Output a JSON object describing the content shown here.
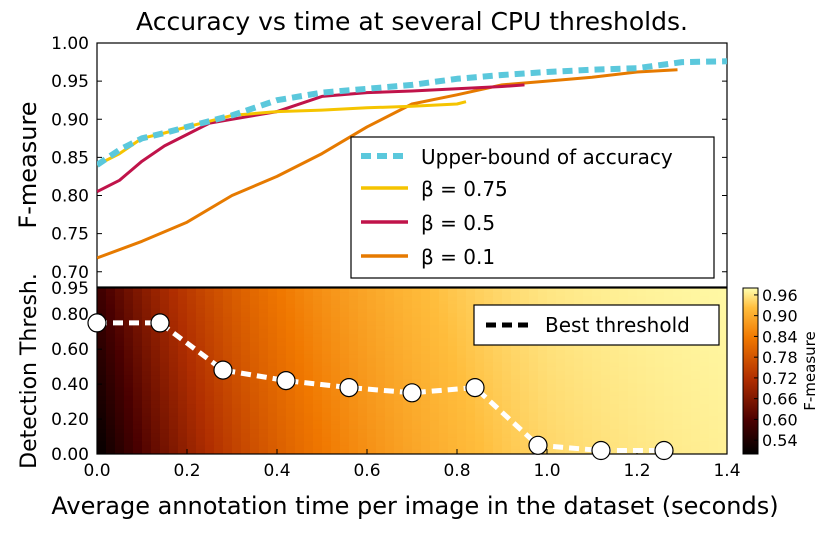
{
  "chart_data": [
    {
      "type": "line",
      "title": "Accuracy vs time at several CPU thresholds.",
      "ylabel": "F-measure",
      "xlim": [
        0.0,
        1.4
      ],
      "ylim": [
        0.68,
        1.0
      ],
      "yticks": [
        "0.70",
        "0.75",
        "0.80",
        "0.85",
        "0.90",
        "0.95",
        "1.00"
      ],
      "legend_position": "lower-right",
      "series": [
        {
          "name": "Upper-bound of accuracy",
          "color": "#5bc8dc",
          "style": "dashed",
          "x": [
            0,
            0.05,
            0.1,
            0.15,
            0.2,
            0.3,
            0.4,
            0.5,
            0.6,
            0.7,
            0.8,
            0.9,
            1.0,
            1.1,
            1.2,
            1.3,
            1.4
          ],
          "y": [
            0.84,
            0.86,
            0.875,
            0.882,
            0.89,
            0.905,
            0.925,
            0.935,
            0.94,
            0.945,
            0.953,
            0.958,
            0.962,
            0.965,
            0.967,
            0.975,
            0.976
          ]
        },
        {
          "name": "0.75",
          "label_prefix": "β = ",
          "color": "#f5c400",
          "style": "solid",
          "x": [
            0,
            0.05,
            0.1,
            0.15,
            0.2,
            0.3,
            0.4,
            0.5,
            0.6,
            0.7,
            0.8,
            0.82
          ],
          "y": [
            0.84,
            0.855,
            0.875,
            0.882,
            0.89,
            0.905,
            0.91,
            0.912,
            0.915,
            0.917,
            0.92,
            0.923
          ]
        },
        {
          "name": "0.5",
          "label_prefix": "β = ",
          "color": "#c0134a",
          "style": "solid",
          "x": [
            0,
            0.05,
            0.1,
            0.15,
            0.2,
            0.25,
            0.3,
            0.4,
            0.5,
            0.6,
            0.7,
            0.8,
            0.9,
            0.95
          ],
          "y": [
            0.805,
            0.82,
            0.845,
            0.865,
            0.88,
            0.895,
            0.9,
            0.91,
            0.93,
            0.935,
            0.937,
            0.94,
            0.943,
            0.945
          ]
        },
        {
          "name": "0.1",
          "label_prefix": "β = ",
          "color": "#e67a00",
          "style": "solid",
          "x": [
            0,
            0.1,
            0.2,
            0.3,
            0.4,
            0.5,
            0.6,
            0.7,
            0.8,
            0.9,
            1.0,
            1.1,
            1.2,
            1.29
          ],
          "y": [
            0.718,
            0.74,
            0.765,
            0.8,
            0.825,
            0.855,
            0.89,
            0.92,
            0.932,
            0.945,
            0.95,
            0.955,
            0.962,
            0.965
          ]
        }
      ]
    },
    {
      "type": "heatmap",
      "ylabel": "Detection Thresh.",
      "xlabel": "Average annotation time per image in the dataset (seconds)",
      "xlim": [
        0.0,
        1.4
      ],
      "ylim": [
        0.0,
        0.95
      ],
      "xticks": [
        "0.0",
        "0.2",
        "0.4",
        "0.6",
        "0.8",
        "1.0",
        "1.2",
        "1.4"
      ],
      "yticks": [
        "0.00",
        "0.20",
        "0.40",
        "0.60",
        "0.80",
        "0.95"
      ],
      "colorbar": {
        "label": "F-measure",
        "ticks": [
          "0.54",
          "0.60",
          "0.66",
          "0.72",
          "0.78",
          "0.84",
          "0.90",
          "0.96"
        ],
        "range": [
          0.5,
          0.98
        ]
      },
      "legend_position": "upper-right",
      "best_threshold": {
        "name": "Best threshold",
        "x": [
          0.0,
          0.14,
          0.28,
          0.42,
          0.56,
          0.7,
          0.84,
          0.98,
          1.12,
          1.26
        ],
        "y": [
          0.75,
          0.75,
          0.48,
          0.42,
          0.38,
          0.35,
          0.38,
          0.05,
          0.02,
          0.02
        ]
      }
    }
  ]
}
